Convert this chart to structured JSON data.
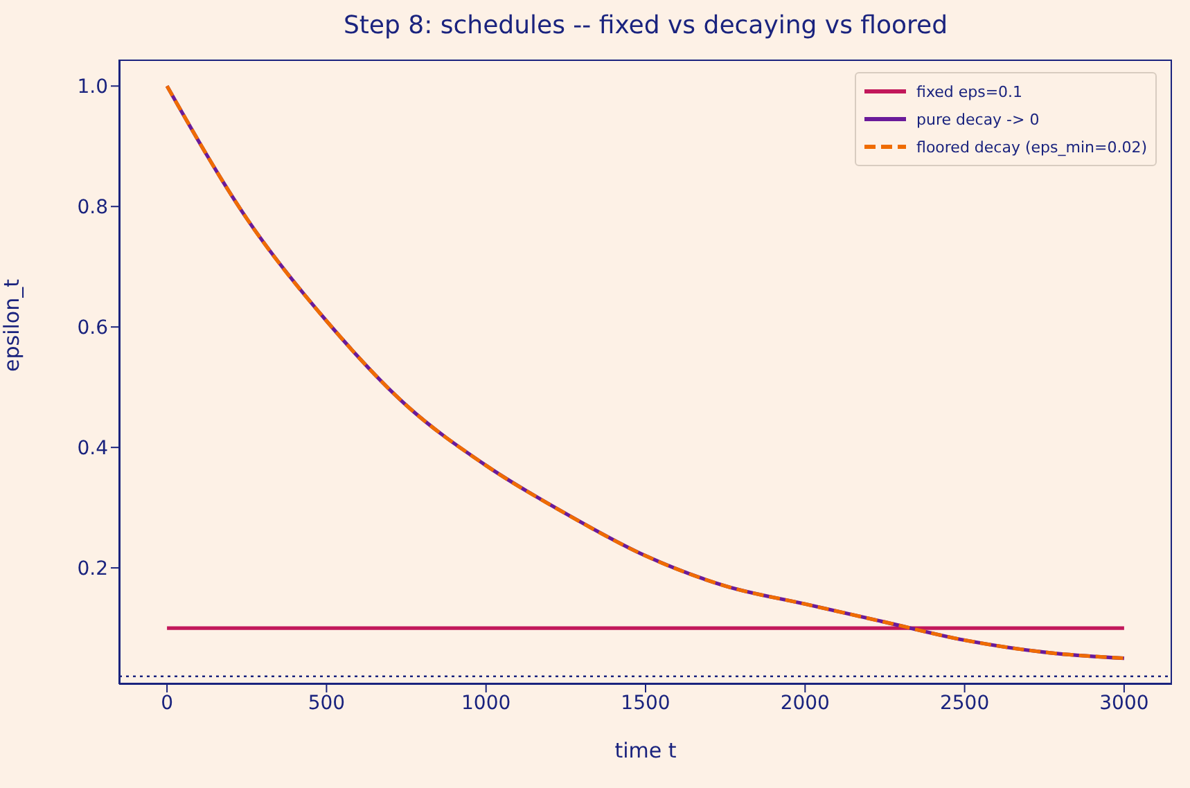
{
  "chart_data": {
    "type": "line",
    "title": "Step 8: schedules -- fixed vs decaying vs floored",
    "xlabel": "time t",
    "ylabel": "epsilon_t",
    "xlim": [
      -150,
      3150
    ],
    "xticks": [
      0,
      500,
      1000,
      1500,
      2000,
      2500,
      3000
    ],
    "ylim": [
      0.007,
      1.044
    ],
    "yticks": [
      0.2,
      0.4,
      0.6,
      0.8,
      {
        "value": 1.0,
        "label": "1.0"
      }
    ],
    "legend": "top right",
    "marker": "none",
    "series": [
      {
        "name": "fixed eps=0.1",
        "color": "#c2185b",
        "x": [
          0,
          3000
        ],
        "values": [
          0.1,
          0.1
        ]
      },
      {
        "name": "pure decay -> 0",
        "color": "#6a1b9a",
        "x": [
          0,
          250,
          500,
          750,
          1000,
          1250,
          1500,
          1750,
          2000,
          2250,
          2500,
          2750,
          3000
        ],
        "values": [
          1.0,
          0.78,
          0.61,
          0.47,
          0.37,
          0.29,
          0.22,
          0.17,
          0.14,
          0.11,
          0.08,
          0.06,
          0.05
        ]
      },
      {
        "name": "floored decay (eps_min=0.02)",
        "color": "#ef6c00",
        "line_style": "dashed",
        "x": [
          0,
          250,
          500,
          750,
          1000,
          1250,
          1500,
          1750,
          2000,
          2250,
          2500,
          2750,
          3000
        ],
        "values": [
          1.0,
          0.78,
          0.61,
          0.47,
          0.37,
          0.29,
          0.22,
          0.17,
          0.14,
          0.11,
          0.08,
          0.06,
          0.05
        ]
      }
    ],
    "ref_lines": [
      {
        "axis": "y",
        "value": 0.02,
        "color": "#1a237e",
        "line_style": "dotted"
      }
    ]
  }
}
